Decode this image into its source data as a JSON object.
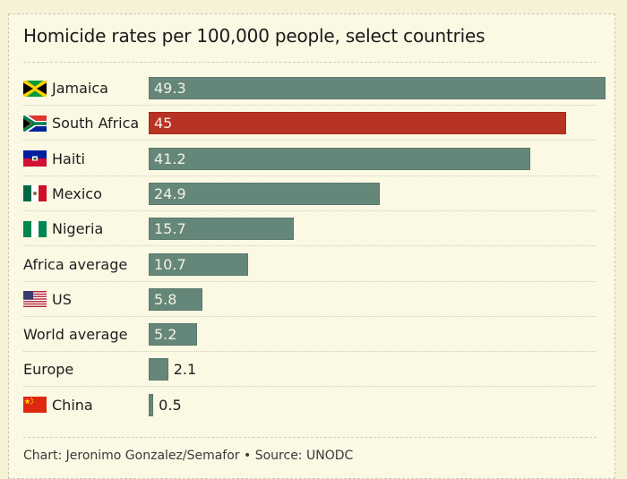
{
  "chart_data": {
    "type": "bar",
    "orientation": "horizontal",
    "title": "Homicide rates per 100,000 people, select countries",
    "xlabel": "",
    "ylabel": "",
    "xlim": [
      0,
      49.3
    ],
    "grid": false,
    "legend": "none",
    "categories": [
      "Jamaica",
      "South Africa",
      "Haiti",
      "Mexico",
      "Nigeria",
      "Africa average",
      "US",
      "World average",
      "Europe",
      "China"
    ],
    "values": [
      49.3,
      45,
      41.2,
      24.9,
      15.7,
      10.7,
      5.8,
      5.2,
      2.1,
      0.5
    ],
    "value_labels": [
      "49.3",
      "45",
      "41.2",
      "24.9",
      "15.7",
      "10.7",
      "5.8",
      "5.2",
      "2.1",
      "0.5"
    ],
    "flags": [
      "jamaica",
      "south-africa",
      "haiti",
      "mexico",
      "nigeria",
      null,
      "us",
      null,
      null,
      "china"
    ],
    "highlight": "South Africa",
    "colors": {
      "default": "#65877a",
      "highlight": "#b93324"
    },
    "source": "Chart: Jeronimo Gonzalez/Semafor • Source: UNODC"
  }
}
